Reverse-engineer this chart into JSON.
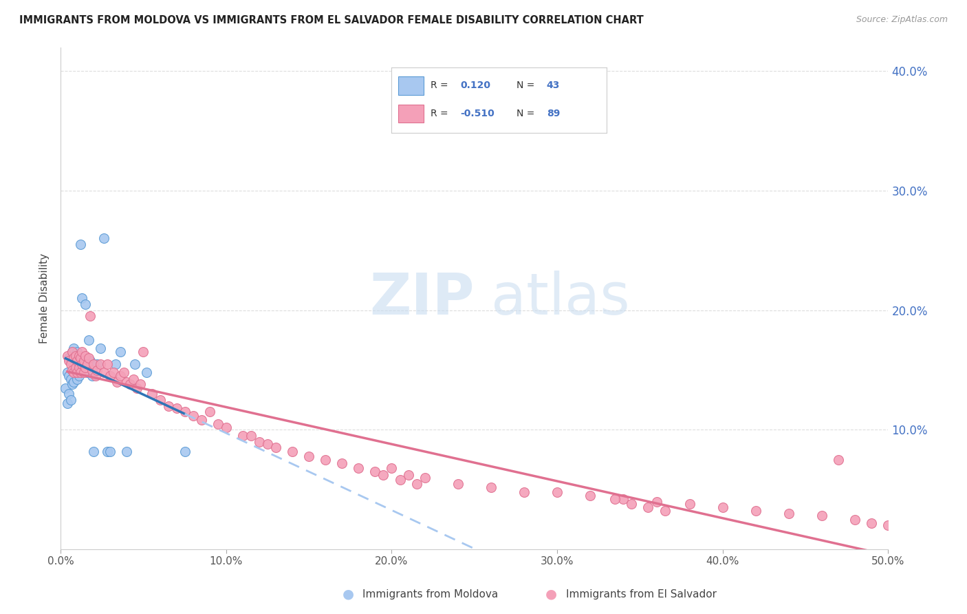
{
  "title": "IMMIGRANTS FROM MOLDOVA VS IMMIGRANTS FROM EL SALVADOR FEMALE DISABILITY CORRELATION CHART",
  "source": "Source: ZipAtlas.com",
  "ylabel": "Female Disability",
  "x_min": 0.0,
  "x_max": 0.5,
  "y_min": 0.0,
  "y_max": 0.42,
  "x_ticks": [
    0.0,
    0.1,
    0.2,
    0.3,
    0.4,
    0.5
  ],
  "x_tick_labels": [
    "0.0%",
    "10.0%",
    "20.0%",
    "30.0%",
    "40.0%",
    "50.0%"
  ],
  "y_ticks": [
    0.1,
    0.2,
    0.3,
    0.4
  ],
  "y_tick_labels": [
    "10.0%",
    "20.0%",
    "30.0%",
    "40.0%"
  ],
  "moldova_color": "#A8C8F0",
  "moldova_edge": "#5B9BD5",
  "el_salvador_color": "#F4A0B8",
  "el_salvador_edge": "#E07090",
  "moldova_R": 0.12,
  "moldova_N": 43,
  "el_salvador_R": -0.51,
  "el_salvador_N": 89,
  "moldova_line_color": "#2E75B6",
  "el_salvador_line_color": "#E07090",
  "moldova_dash_color": "#A8C8F0",
  "moldova_x": [
    0.003,
    0.004,
    0.004,
    0.005,
    0.005,
    0.005,
    0.006,
    0.006,
    0.006,
    0.007,
    0.007,
    0.007,
    0.008,
    0.008,
    0.008,
    0.009,
    0.009,
    0.01,
    0.01,
    0.01,
    0.011,
    0.011,
    0.012,
    0.012,
    0.013,
    0.014,
    0.015,
    0.016,
    0.017,
    0.018,
    0.019,
    0.02,
    0.022,
    0.024,
    0.026,
    0.028,
    0.03,
    0.033,
    0.036,
    0.04,
    0.045,
    0.052,
    0.075
  ],
  "moldova_y": [
    0.135,
    0.148,
    0.122,
    0.16,
    0.145,
    0.13,
    0.158,
    0.142,
    0.125,
    0.165,
    0.15,
    0.138,
    0.168,
    0.155,
    0.14,
    0.162,
    0.148,
    0.165,
    0.155,
    0.142,
    0.158,
    0.145,
    0.255,
    0.16,
    0.21,
    0.155,
    0.205,
    0.148,
    0.175,
    0.158,
    0.145,
    0.082,
    0.155,
    0.168,
    0.26,
    0.082,
    0.082,
    0.155,
    0.165,
    0.082,
    0.155,
    0.148,
    0.082
  ],
  "el_salvador_x": [
    0.004,
    0.005,
    0.006,
    0.007,
    0.007,
    0.008,
    0.008,
    0.009,
    0.009,
    0.01,
    0.01,
    0.011,
    0.011,
    0.012,
    0.012,
    0.013,
    0.013,
    0.014,
    0.014,
    0.015,
    0.015,
    0.016,
    0.017,
    0.018,
    0.019,
    0.02,
    0.021,
    0.022,
    0.024,
    0.026,
    0.028,
    0.03,
    0.032,
    0.034,
    0.036,
    0.038,
    0.04,
    0.042,
    0.044,
    0.046,
    0.048,
    0.05,
    0.055,
    0.06,
    0.065,
    0.07,
    0.075,
    0.08,
    0.085,
    0.09,
    0.095,
    0.1,
    0.11,
    0.115,
    0.12,
    0.125,
    0.13,
    0.14,
    0.15,
    0.16,
    0.17,
    0.18,
    0.19,
    0.2,
    0.21,
    0.22,
    0.24,
    0.26,
    0.28,
    0.3,
    0.32,
    0.34,
    0.36,
    0.38,
    0.4,
    0.42,
    0.44,
    0.46,
    0.47,
    0.48,
    0.49,
    0.5,
    0.195,
    0.205,
    0.215,
    0.335,
    0.345,
    0.355,
    0.365
  ],
  "el_salvador_y": [
    0.162,
    0.158,
    0.155,
    0.165,
    0.15,
    0.16,
    0.148,
    0.162,
    0.152,
    0.158,
    0.148,
    0.162,
    0.152,
    0.16,
    0.148,
    0.165,
    0.155,
    0.158,
    0.148,
    0.162,
    0.152,
    0.155,
    0.16,
    0.195,
    0.15,
    0.155,
    0.145,
    0.15,
    0.155,
    0.148,
    0.155,
    0.145,
    0.148,
    0.14,
    0.145,
    0.148,
    0.14,
    0.138,
    0.142,
    0.135,
    0.138,
    0.165,
    0.13,
    0.125,
    0.12,
    0.118,
    0.115,
    0.112,
    0.108,
    0.115,
    0.105,
    0.102,
    0.095,
    0.095,
    0.09,
    0.088,
    0.085,
    0.082,
    0.078,
    0.075,
    0.072,
    0.068,
    0.065,
    0.068,
    0.062,
    0.06,
    0.055,
    0.052,
    0.048,
    0.048,
    0.045,
    0.042,
    0.04,
    0.038,
    0.035,
    0.032,
    0.03,
    0.028,
    0.075,
    0.025,
    0.022,
    0.02,
    0.062,
    0.058,
    0.055,
    0.042,
    0.038,
    0.035,
    0.032
  ]
}
